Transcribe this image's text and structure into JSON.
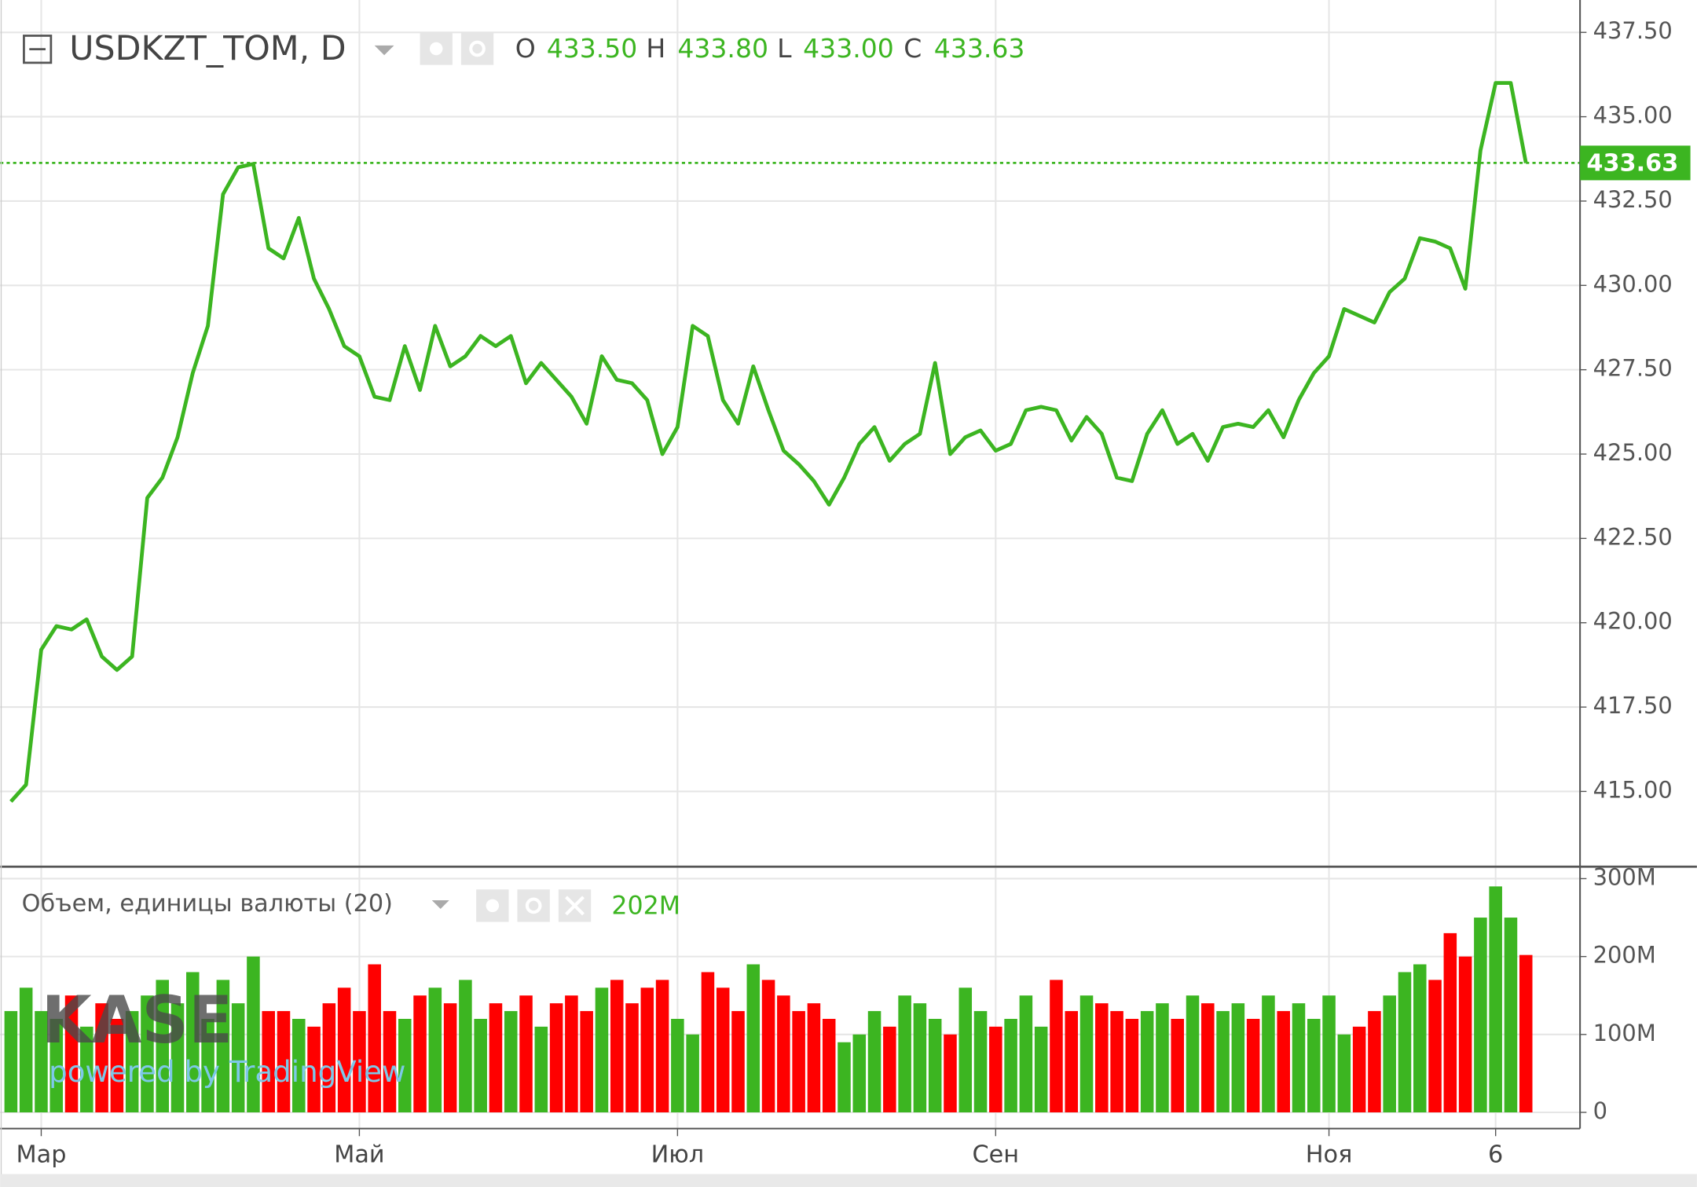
{
  "watermark": {
    "logo": "KASE",
    "credit": "powered by TradingView"
  },
  "chart_data": [
    {
      "type": "line",
      "title": "USDKZT_TOM, D",
      "ohlc": [
        {
          "label": "O",
          "value": "433.50"
        },
        {
          "label": "H",
          "value": "433.80"
        },
        {
          "label": "L",
          "value": "433.00"
        },
        {
          "label": "C",
          "value": "433.63"
        }
      ],
      "categories": [
        null,
        null,
        "Мар",
        null,
        null,
        null,
        null,
        null,
        null,
        null,
        null,
        null,
        null,
        null,
        null,
        null,
        null,
        null,
        null,
        null,
        null,
        null,
        null,
        "Май",
        null,
        null,
        null,
        null,
        null,
        null,
        null,
        null,
        null,
        null,
        null,
        null,
        null,
        null,
        null,
        null,
        null,
        null,
        null,
        null,
        "Июл",
        null,
        null,
        null,
        null,
        null,
        null,
        null,
        null,
        null,
        null,
        null,
        null,
        null,
        null,
        null,
        null,
        null,
        null,
        null,
        null,
        "Сен",
        null,
        null,
        null,
        null,
        null,
        null,
        null,
        null,
        null,
        null,
        null,
        null,
        null,
        null,
        null,
        null,
        null,
        null,
        null,
        null,
        null,
        "Ноя",
        null,
        null,
        null,
        null,
        null,
        null,
        null,
        null,
        null,
        null,
        "6",
        null,
        null
      ],
      "series": [
        {
          "color": "#3cb521",
          "values": [
            414.7,
            415.2,
            419.2,
            419.9,
            419.8,
            420.1,
            419.0,
            418.6,
            419.0,
            423.7,
            424.3,
            425.5,
            427.4,
            428.8,
            432.7,
            433.5,
            433.6,
            431.1,
            430.8,
            432.0,
            430.2,
            429.3,
            428.2,
            427.9,
            426.7,
            426.6,
            428.2,
            426.9,
            428.8,
            427.6,
            427.9,
            428.5,
            428.2,
            428.5,
            427.1,
            427.7,
            427.2,
            426.7,
            425.9,
            427.9,
            427.2,
            427.1,
            426.6,
            425.0,
            425.8,
            428.8,
            428.5,
            426.6,
            425.9,
            427.6,
            426.3,
            425.1,
            424.7,
            424.2,
            423.5,
            424.3,
            425.3,
            425.8,
            424.8,
            425.3,
            425.6,
            427.7,
            425.0,
            425.5,
            425.7,
            425.1,
            425.3,
            426.3,
            426.4,
            426.3,
            425.4,
            426.1,
            425.6,
            424.3,
            424.2,
            425.6,
            426.3,
            425.3,
            425.6,
            424.8,
            425.8,
            425.9,
            425.8,
            426.3,
            425.5,
            426.6,
            427.4,
            427.9,
            429.3,
            429.1,
            428.9,
            429.8,
            430.2,
            431.4,
            431.3,
            431.1,
            429.9,
            434.0,
            436.0,
            436.0,
            433.63
          ]
        }
      ],
      "ylim": [
        412.8,
        438.46
      ],
      "yticks": [
        {
          "value": 415,
          "label": "415.00"
        },
        {
          "value": 417.5,
          "label": "417.50"
        },
        {
          "value": 420,
          "label": "420.00"
        },
        {
          "value": 422.5,
          "label": "422.50"
        },
        {
          "value": 425,
          "label": "425.00"
        },
        {
          "value": 427.5,
          "label": "427.50"
        },
        {
          "value": 430,
          "label": "430.00"
        },
        {
          "value": 432.5,
          "label": "432.50"
        },
        {
          "value": 435,
          "label": "435.00"
        },
        {
          "value": 437.5,
          "label": "437.50"
        }
      ],
      "last_price": {
        "value": 433.63,
        "label": "433.63"
      },
      "grid": true
    },
    {
      "type": "bar",
      "title": "Объем, единицы валюты (20)",
      "last_value_label": "202M",
      "values": [
        130,
        160,
        130,
        120,
        150,
        110,
        140,
        120,
        130,
        150,
        170,
        140,
        180,
        120,
        170,
        140,
        200,
        130,
        130,
        120,
        110,
        140,
        160,
        130,
        190,
        130,
        120,
        150,
        160,
        140,
        170,
        120,
        140,
        130,
        150,
        110,
        140,
        150,
        130,
        160,
        170,
        140,
        160,
        170,
        120,
        100,
        180,
        160,
        130,
        190,
        170,
        150,
        130,
        140,
        120,
        90,
        100,
        130,
        110,
        150,
        140,
        120,
        100,
        160,
        130,
        110,
        120,
        150,
        110,
        170,
        130,
        150,
        140,
        130,
        120,
        130,
        140,
        120,
        150,
        140,
        130,
        140,
        120,
        150,
        130,
        140,
        120,
        150,
        100,
        110,
        130,
        150,
        180,
        190,
        170,
        230,
        200,
        250,
        290,
        250,
        202
      ],
      "up_color": "#3cb521",
      "down_color": "#ff0000",
      "ylim": [
        -20.8,
        313.9
      ],
      "yticks": [
        0,
        {
          "value": 100,
          "label": "100M"
        },
        {
          "value": 200,
          "label": "200M"
        },
        {
          "value": 300,
          "label": "300M"
        }
      ],
      "grid": true
    }
  ]
}
